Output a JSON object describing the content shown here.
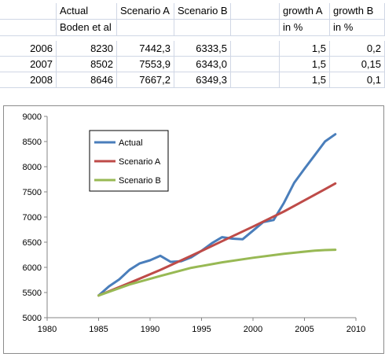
{
  "table": {
    "header_row1": [
      "Actual",
      "Scenario A",
      "Scenario B",
      "",
      "growth A",
      "growth B"
    ],
    "header_row2": [
      "Boden et al",
      "",
      "",
      "",
      "in %",
      "in %"
    ],
    "rows": [
      {
        "year": "2006",
        "actual": "8230",
        "scen_a": "7442,3",
        "scen_b": "6333,5",
        "blank": "",
        "growth_a": "1,5",
        "growth_b": "0,2"
      },
      {
        "year": "2007",
        "actual": "8502",
        "scen_a": "7553,9",
        "scen_b": "6343,0",
        "blank": "",
        "growth_a": "1,5",
        "growth_b": "0,15"
      },
      {
        "year": "2008",
        "actual": "8646",
        "scen_a": "7667,2",
        "scen_b": "6349,3",
        "blank": "",
        "growth_a": "1,5",
        "growth_b": "0,1"
      }
    ]
  },
  "chart_data": {
    "type": "line",
    "title": "",
    "xlabel": "",
    "ylabel": "",
    "xlim": [
      1980,
      2010
    ],
    "ylim": [
      5000,
      9000
    ],
    "xticks": [
      1980,
      1985,
      1990,
      1995,
      2000,
      2005,
      2010
    ],
    "yticks": [
      5000,
      5500,
      6000,
      6500,
      7000,
      7500,
      8000,
      8500,
      9000
    ],
    "grid": false,
    "legend_position": "top-left",
    "series": [
      {
        "name": "Actual",
        "color": "#4a7ebb",
        "x": [
          1985,
          1986,
          1987,
          1988,
          1989,
          1990,
          1991,
          1992,
          1993,
          1994,
          1995,
          1996,
          1997,
          1998,
          1999,
          2000,
          2001,
          2002,
          2003,
          2004,
          2005,
          2006,
          2007,
          2008
        ],
        "y": [
          5440,
          5620,
          5760,
          5950,
          6080,
          6140,
          6230,
          6110,
          6120,
          6200,
          6330,
          6480,
          6600,
          6570,
          6560,
          6730,
          6900,
          6940,
          7280,
          7680,
          7960,
          8230,
          8502,
          8646
        ]
      },
      {
        "name": "Scenario A",
        "color": "#be4b48",
        "x": [
          1985,
          1988,
          1991,
          1994,
          1997,
          2000,
          2003,
          2006,
          2007,
          2008
        ],
        "y": [
          5440,
          5690,
          5950,
          6230,
          6520,
          6810,
          7110,
          7442.3,
          7553.9,
          7667.2
        ]
      },
      {
        "name": "Scenario B",
        "color": "#98b954",
        "x": [
          1985,
          1988,
          1991,
          1994,
          1997,
          2000,
          2003,
          2006,
          2007,
          2008
        ],
        "y": [
          5440,
          5660,
          5830,
          5990,
          6100,
          6190,
          6270,
          6333.5,
          6343.0,
          6349.3
        ]
      }
    ]
  }
}
